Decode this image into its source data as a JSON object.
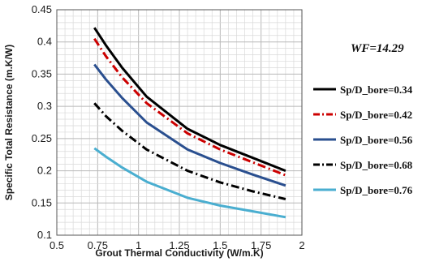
{
  "chart_data": {
    "type": "line",
    "title": "",
    "annotation": "WF=14.29",
    "xlabel": "Grout Thermal Conductivity (W/m.K)",
    "ylabel": "Specific Total Resistance (m.K/W)",
    "xlim": [
      0.5,
      2
    ],
    "ylim": [
      0.1,
      0.45
    ],
    "xticks": [
      0.5,
      0.75,
      1,
      1.25,
      1.5,
      1.75,
      2
    ],
    "xtick_labels": [
      "0.5",
      "0.75",
      "1",
      "1.25",
      "1.5",
      "1.75",
      "2"
    ],
    "yticks": [
      0.1,
      0.15,
      0.2,
      0.25,
      0.3,
      0.35,
      0.4,
      0.45
    ],
    "ytick_labels": [
      "0.1",
      "0.15",
      "0.2",
      "0.25",
      "0.3",
      "0.35",
      "0.4",
      "0.45"
    ],
    "grid": true,
    "legend_position": "right",
    "x": [
      0.73,
      0.8,
      0.9,
      1.05,
      1.3,
      1.5,
      1.7,
      1.9
    ],
    "series": [
      {
        "name": "Sp/D_bore=0.34",
        "color": "#000000",
        "dash": "solid",
        "values": [
          0.422,
          0.395,
          0.36,
          0.315,
          0.265,
          0.24,
          0.22,
          0.2
        ]
      },
      {
        "name": "Sp/D_bore=0.42",
        "color": "#cc0000",
        "dash": "dashdot",
        "values": [
          0.405,
          0.378,
          0.345,
          0.305,
          0.258,
          0.233,
          0.213,
          0.193
        ]
      },
      {
        "name": "Sp/D_bore=0.56",
        "color": "#2a4f8f",
        "dash": "solid",
        "values": [
          0.365,
          0.342,
          0.313,
          0.275,
          0.233,
          0.212,
          0.194,
          0.177
        ]
      },
      {
        "name": "Sp/D_bore=0.68",
        "color": "#000000",
        "dash": "dashdot",
        "values": [
          0.305,
          0.285,
          0.262,
          0.233,
          0.2,
          0.182,
          0.168,
          0.156
        ]
      },
      {
        "name": "Sp/D_bore=0.76",
        "color": "#4aaed0",
        "dash": "solid",
        "values": [
          0.235,
          0.222,
          0.205,
          0.183,
          0.158,
          0.146,
          0.137,
          0.128
        ]
      }
    ]
  }
}
